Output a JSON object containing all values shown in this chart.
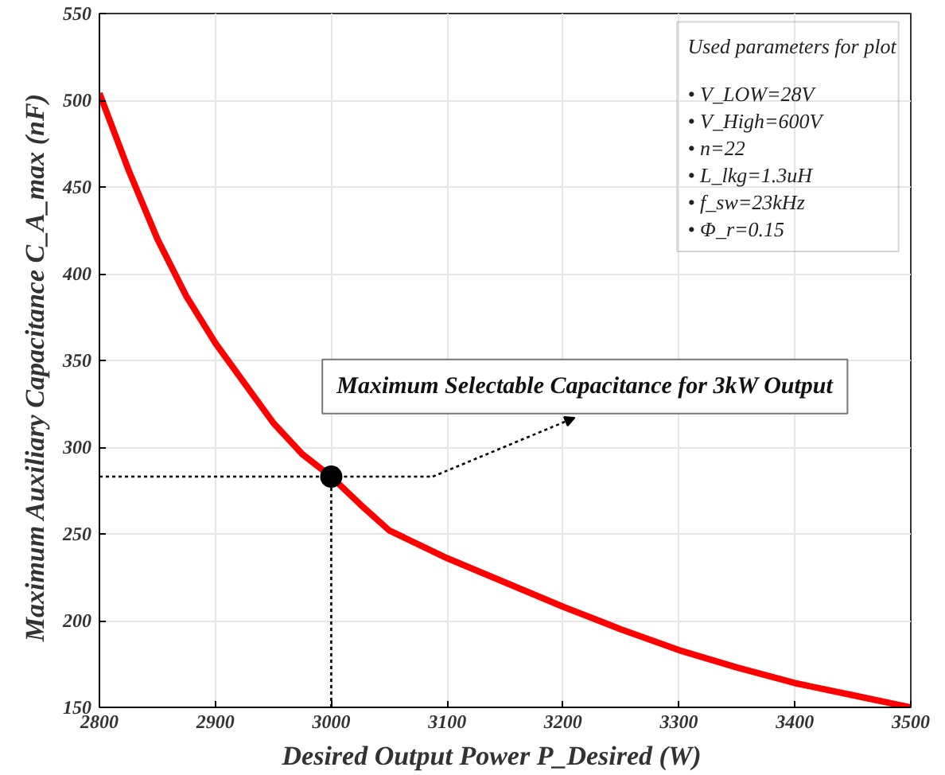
{
  "chart_data": {
    "type": "line",
    "xlabel": "Desired Output Power    P_Desired  (W)",
    "ylabel": "Maximum Auxiliary Capacitance   C_A_max (nF)",
    "x": [
      2800,
      2825,
      2850,
      2875,
      2900,
      2925,
      2950,
      2975,
      3000,
      3025,
      3050,
      3100,
      3150,
      3200,
      3250,
      3300,
      3350,
      3400,
      3450,
      3500
    ],
    "series": [
      {
        "color": "#ff0000",
        "values": [
          504,
          460,
          420,
          387,
          360,
          337,
          314,
          296,
          283,
          267,
          252,
          236,
          222,
          208,
          195,
          183,
          173,
          164,
          157,
          150
        ]
      },
      {
        "type": "scatter",
        "color": "#000000",
        "x": [
          3000
        ],
        "values": [
          283
        ],
        "marker": "circle"
      }
    ],
    "xlim": [
      2800,
      3500
    ],
    "ylim": [
      150,
      550
    ],
    "xticks": [
      2800,
      2900,
      3000,
      3100,
      3200,
      3300,
      3400,
      3500
    ],
    "yticks": [
      150,
      200,
      250,
      300,
      350,
      400,
      450,
      500,
      550
    ],
    "grid": true,
    "ref_lines": [
      {
        "axis": "x",
        "value": 3000,
        "label": null,
        "line_style": "dotted",
        "color": "#000000"
      },
      {
        "axis": "y",
        "value": 283,
        "label": null,
        "line_style": "dotted",
        "color": "#000000"
      }
    ],
    "annotations": [
      "Maximum Selectable Capacitance for 3kW Output",
      "Used parameters for plot",
      "• V_LOW=28V",
      "• V_High=600V",
      "• n=22",
      "• L_lkg=1.3uH",
      "• f_sw=23kHz",
      "• Φ_r=0.15"
    ]
  }
}
